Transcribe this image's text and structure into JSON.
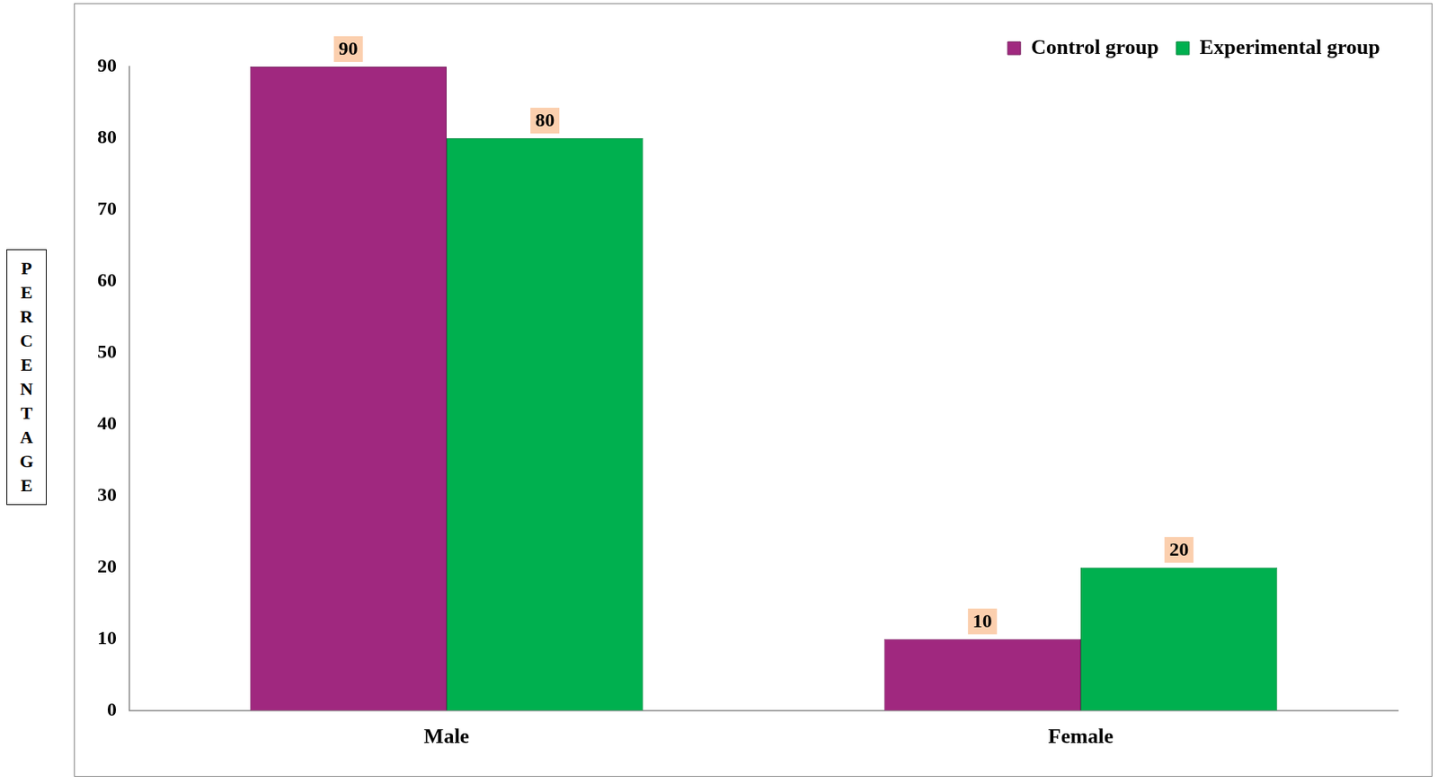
{
  "chart_data": {
    "type": "bar",
    "y_label": "PERCENTAGE",
    "categories": [
      "Male",
      "Female"
    ],
    "series": [
      {
        "name": "Control group",
        "color": "#a0287f",
        "values": [
          90,
          10
        ]
      },
      {
        "name": "Experimental group",
        "color": "#00b04f",
        "values": [
          80,
          20
        ]
      }
    ],
    "ylim": [
      0,
      90
    ],
    "yticks": [
      0,
      10,
      20,
      30,
      40,
      50,
      60,
      70,
      80,
      90
    ],
    "grid": false,
    "legend": "top-right",
    "data_labels": true
  }
}
